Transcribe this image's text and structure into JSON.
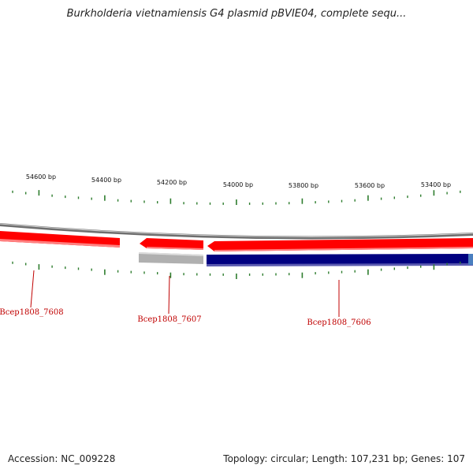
{
  "title": "Burkholderia vietnamiensis G4 plasmid pBVIE04, complete sequ...",
  "accession": "Accession: NC_009228",
  "summary": "Topology: circular; Length: 107,231 bp; Genes: 107",
  "scale_labels": [
    "54600 bp",
    "54400 bp",
    "54200 bp",
    "54000 bp",
    "53800 bp",
    "53600 bp",
    "53400 bp"
  ],
  "genes": [
    {
      "id": "gene-7608",
      "label": "Bcep1808_7608"
    },
    {
      "id": "gene-7607",
      "label": "Bcep1808_7607"
    },
    {
      "id": "gene-7606",
      "label": "Bcep1808_7606"
    }
  ],
  "colors": {
    "backbone": "#7a7a7a",
    "forward_gene": "#ff0000",
    "cds_grey": "#b0b0b0",
    "cds_blue": "#000080",
    "tick": "#2e7d2e",
    "label": "#c00000"
  }
}
